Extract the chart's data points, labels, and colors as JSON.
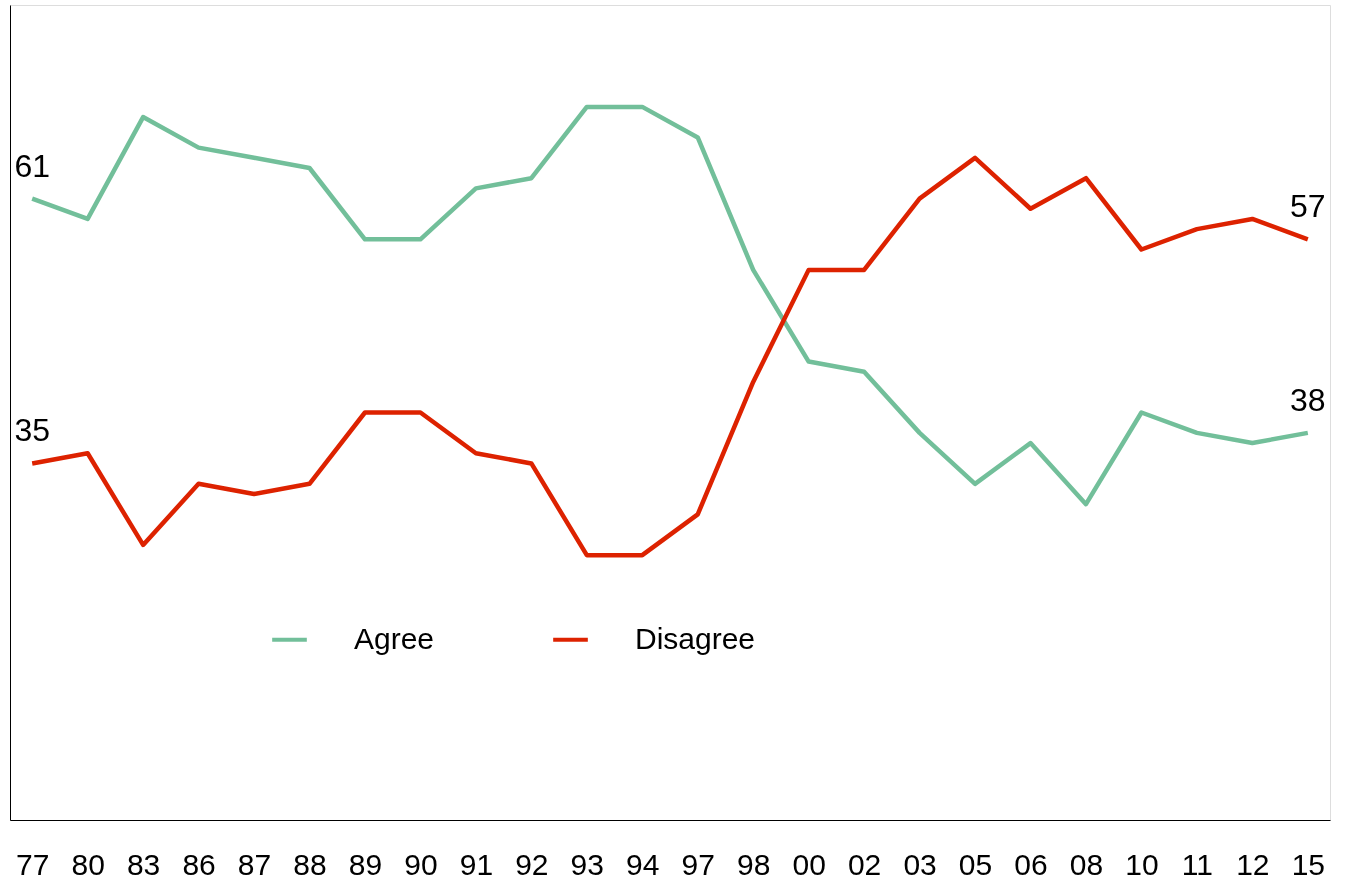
{
  "chart_data": {
    "type": "line",
    "categories": [
      "77",
      "80",
      "83",
      "86",
      "87",
      "88",
      "89",
      "90",
      "91",
      "92",
      "93",
      "94",
      "97",
      "98",
      "00",
      "02",
      "03",
      "05",
      "06",
      "08",
      "10",
      "11",
      "12",
      "15"
    ],
    "series": [
      {
        "name": "Agree",
        "color": "#72bf9a",
        "values": [
          61,
          59,
          69,
          66,
          65,
          64,
          57,
          57,
          62,
          63,
          70,
          70,
          67,
          54,
          45,
          44,
          38,
          33,
          37,
          31,
          40,
          38,
          37,
          38
        ],
        "value_labels": [
          "61",
          null,
          null,
          null,
          null,
          null,
          null,
          null,
          null,
          null,
          null,
          null,
          null,
          null,
          null,
          null,
          null,
          null,
          null,
          null,
          null,
          null,
          null,
          "38"
        ]
      },
      {
        "name": "Disagree",
        "color": "#dd2200",
        "values": [
          35,
          36,
          27,
          33,
          32,
          33,
          40,
          40,
          36,
          35,
          26,
          26,
          30,
          43,
          54,
          54,
          61,
          65,
          60,
          63,
          56,
          58,
          59,
          57
        ],
        "value_labels": [
          "35",
          null,
          null,
          null,
          null,
          null,
          null,
          null,
          null,
          null,
          null,
          null,
          null,
          null,
          null,
          null,
          null,
          null,
          null,
          null,
          null,
          null,
          null,
          "57"
        ]
      }
    ],
    "ylim": [
      0,
      80
    ],
    "tick_labels": "x",
    "grid": false,
    "legend": "bottom",
    "marker": "none",
    "line_style": "solid"
  }
}
